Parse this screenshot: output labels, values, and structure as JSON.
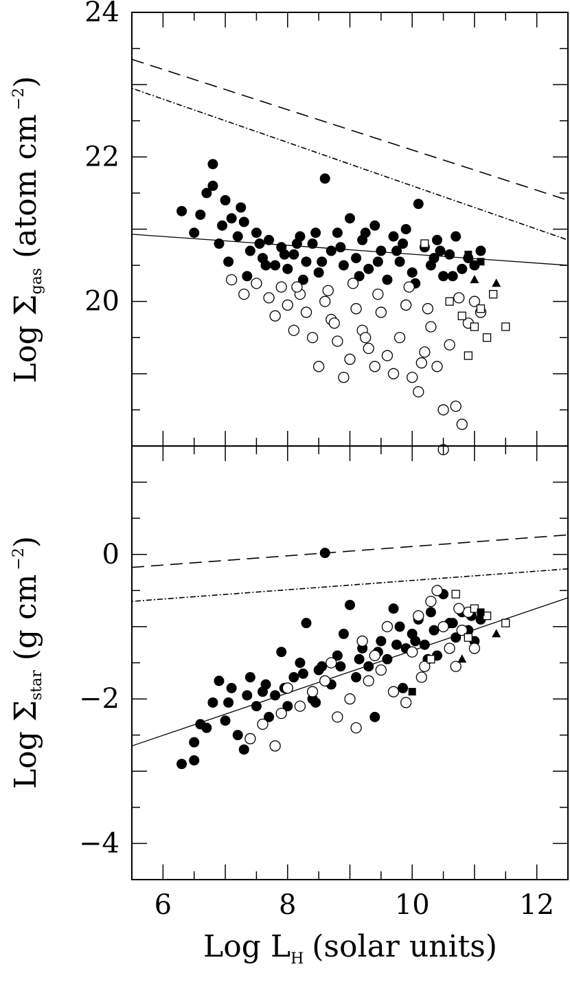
{
  "chart_data": [
    {
      "panel": "top",
      "type": "scatter",
      "ylabel": {
        "main": "Log Σ",
        "sub": "gas",
        "unit": "(atom cm",
        "exp": "−2",
        "close": ")"
      },
      "xlim": [
        5.5,
        12.5
      ],
      "ylim": [
        18.0,
        24.0
      ],
      "yticks": [
        {
          "value": 20,
          "label": "20"
        },
        {
          "value": 22,
          "label": "22"
        },
        {
          "value": 24,
          "label": "24"
        }
      ],
      "grid": false,
      "lines": [
        {
          "style": "solid",
          "x": [
            5.5,
            12.5
          ],
          "y": [
            20.93,
            20.5
          ]
        },
        {
          "style": "dashed",
          "x": [
            5.5,
            12.5
          ],
          "y": [
            23.35,
            21.4
          ]
        },
        {
          "style": "dotdash",
          "x": [
            5.5,
            12.5
          ],
          "y": [
            22.95,
            20.85
          ]
        }
      ],
      "series": [
        {
          "marker": "filled-circle",
          "points": [
            [
              6.3,
              21.25
            ],
            [
              6.5,
              20.95
            ],
            [
              6.6,
              21.2
            ],
            [
              6.7,
              21.5
            ],
            [
              6.8,
              21.9
            ],
            [
              6.8,
              21.6
            ],
            [
              6.9,
              20.8
            ],
            [
              7.0,
              21.4
            ],
            [
              7.1,
              21.15
            ],
            [
              7.2,
              20.9
            ],
            [
              7.3,
              21.1
            ],
            [
              7.4,
              20.7
            ],
            [
              7.5,
              20.95
            ],
            [
              7.6,
              20.6
            ],
            [
              7.7,
              20.85
            ],
            [
              7.8,
              20.5
            ],
            [
              7.9,
              20.75
            ],
            [
              8.0,
              20.45
            ],
            [
              8.1,
              20.65
            ],
            [
              8.2,
              20.9
            ],
            [
              8.3,
              20.55
            ],
            [
              8.4,
              20.8
            ],
            [
              8.5,
              20.4
            ],
            [
              8.6,
              21.7
            ],
            [
              8.7,
              20.7
            ],
            [
              8.8,
              20.95
            ],
            [
              8.9,
              20.5
            ],
            [
              9.0,
              21.15
            ],
            [
              9.1,
              20.6
            ],
            [
              9.2,
              20.85
            ],
            [
              9.3,
              20.45
            ],
            [
              9.4,
              21.05
            ],
            [
              9.5,
              20.7
            ],
            [
              9.6,
              20.3
            ],
            [
              9.7,
              20.9
            ],
            [
              9.8,
              20.55
            ],
            [
              9.9,
              21.0
            ],
            [
              10.0,
              20.4
            ],
            [
              10.1,
              21.35
            ],
            [
              10.2,
              20.75
            ],
            [
              10.3,
              20.5
            ],
            [
              10.4,
              20.85
            ],
            [
              10.5,
              20.35
            ],
            [
              10.6,
              20.65
            ],
            [
              10.7,
              20.9
            ],
            [
              10.8,
              20.45
            ],
            [
              10.9,
              20.6
            ],
            [
              11.0,
              20.5
            ],
            [
              11.1,
              20.7
            ],
            [
              7.05,
              20.55
            ],
            [
              7.35,
              20.35
            ],
            [
              7.65,
              20.5
            ],
            [
              7.95,
              20.65
            ],
            [
              8.25,
              20.3
            ],
            [
              8.55,
              20.55
            ],
            [
              8.85,
              20.75
            ],
            [
              9.15,
              20.35
            ],
            [
              9.45,
              20.55
            ],
            [
              9.75,
              20.7
            ],
            [
              10.05,
              20.25
            ],
            [
              10.35,
              20.6
            ],
            [
              10.65,
              20.35
            ],
            [
              6.95,
              21.05
            ],
            [
              7.25,
              21.3
            ],
            [
              7.55,
              20.8
            ],
            [
              8.15,
              20.8
            ],
            [
              8.45,
              20.95
            ],
            [
              9.25,
              20.95
            ],
            [
              9.85,
              20.8
            ],
            [
              10.45,
              20.7
            ]
          ]
        },
        {
          "marker": "open-circle",
          "points": [
            [
              7.1,
              20.3
            ],
            [
              7.3,
              20.1
            ],
            [
              7.5,
              20.25
            ],
            [
              7.7,
              20.05
            ],
            [
              7.8,
              19.8
            ],
            [
              7.9,
              20.2
            ],
            [
              8.0,
              19.95
            ],
            [
              8.1,
              19.6
            ],
            [
              8.2,
              20.1
            ],
            [
              8.3,
              19.85
            ],
            [
              8.4,
              19.5
            ],
            [
              8.5,
              19.1
            ],
            [
              8.6,
              20.0
            ],
            [
              8.7,
              19.75
            ],
            [
              8.8,
              19.45
            ],
            [
              8.9,
              18.95
            ],
            [
              9.0,
              19.2
            ],
            [
              9.1,
              19.9
            ],
            [
              9.2,
              19.6
            ],
            [
              9.3,
              19.35
            ],
            [
              9.4,
              19.1
            ],
            [
              9.5,
              19.85
            ],
            [
              9.6,
              19.25
            ],
            [
              9.7,
              19.0
            ],
            [
              9.8,
              19.5
            ],
            [
              9.9,
              19.95
            ],
            [
              10.0,
              18.95
            ],
            [
              10.1,
              18.75
            ],
            [
              10.2,
              19.3
            ],
            [
              10.3,
              19.65
            ],
            [
              10.4,
              19.1
            ],
            [
              10.5,
              18.5
            ],
            [
              10.5,
              17.95
            ],
            [
              10.6,
              19.4
            ],
            [
              10.7,
              18.55
            ],
            [
              10.8,
              18.3
            ],
            [
              10.9,
              19.7
            ],
            [
              11.0,
              20.0
            ],
            [
              11.1,
              19.85
            ],
            [
              8.15,
              20.2
            ],
            [
              8.65,
              20.15
            ],
            [
              9.05,
              20.25
            ],
            [
              9.45,
              20.1
            ],
            [
              9.95,
              20.2
            ],
            [
              10.25,
              19.9
            ],
            [
              10.75,
              20.05
            ],
            [
              9.25,
              19.5
            ],
            [
              10.15,
              19.15
            ],
            [
              8.75,
              19.7
            ]
          ]
        },
        {
          "marker": "open-square",
          "points": [
            [
              10.6,
              20.0
            ],
            [
              10.8,
              19.8
            ],
            [
              11.0,
              19.65
            ],
            [
              11.2,
              19.5
            ],
            [
              11.3,
              20.1
            ],
            [
              11.5,
              19.65
            ],
            [
              10.9,
              19.25
            ],
            [
              10.2,
              20.8
            ],
            [
              11.1,
              19.9
            ]
          ]
        },
        {
          "marker": "filled-square",
          "points": [
            [
              11.1,
              20.55
            ],
            [
              10.9,
              20.65
            ]
          ]
        },
        {
          "marker": "filled-triangle",
          "points": [
            [
              11.35,
              20.25
            ],
            [
              11.0,
              20.3
            ]
          ]
        }
      ]
    },
    {
      "panel": "bottom",
      "type": "scatter",
      "xlabel": {
        "main": "Log L",
        "sub": "H",
        "rest": "(solar units)"
      },
      "ylabel": {
        "main": "Log Σ",
        "sub": "star",
        "unit": "(g cm",
        "exp": "−2",
        "close": ")"
      },
      "xlim": [
        5.5,
        12.5
      ],
      "ylim": [
        -4.5,
        1.5
      ],
      "xticks": [
        {
          "value": 6,
          "label": "6"
        },
        {
          "value": 8,
          "label": "8"
        },
        {
          "value": 10,
          "label": "10"
        },
        {
          "value": 12,
          "label": "12"
        }
      ],
      "yticks": [
        {
          "value": -4,
          "label": "−4"
        },
        {
          "value": -2,
          "label": "−2"
        },
        {
          "value": 0,
          "label": "0"
        }
      ],
      "grid": false,
      "lines": [
        {
          "style": "solid",
          "x": [
            5.5,
            12.5
          ],
          "y": [
            -2.65,
            -0.6
          ]
        },
        {
          "style": "dashed",
          "x": [
            5.5,
            12.5
          ],
          "y": [
            -0.18,
            0.27
          ]
        },
        {
          "style": "dotdash",
          "x": [
            5.5,
            12.5
          ],
          "y": [
            -0.65,
            -0.2
          ]
        }
      ],
      "series": [
        {
          "marker": "filled-circle",
          "points": [
            [
              6.3,
              -2.9
            ],
            [
              6.5,
              -2.85
            ],
            [
              6.5,
              -2.6
            ],
            [
              6.6,
              -2.35
            ],
            [
              6.7,
              -2.4
            ],
            [
              6.8,
              -2.05
            ],
            [
              6.9,
              -1.75
            ],
            [
              7.0,
              -2.3
            ],
            [
              7.1,
              -1.85
            ],
            [
              7.2,
              -2.5
            ],
            [
              7.3,
              -2.7
            ],
            [
              7.4,
              -1.7
            ],
            [
              7.5,
              -2.1
            ],
            [
              7.6,
              -1.9
            ],
            [
              7.7,
              -2.25
            ],
            [
              7.8,
              -1.95
            ],
            [
              7.9,
              -1.35
            ],
            [
              8.0,
              -2.1
            ],
            [
              8.1,
              -1.7
            ],
            [
              8.2,
              -1.5
            ],
            [
              8.3,
              -0.95
            ],
            [
              8.4,
              -2.0
            ],
            [
              8.5,
              -1.6
            ],
            [
              8.6,
              0.02
            ],
            [
              8.7,
              -1.8
            ],
            [
              8.8,
              -1.4
            ],
            [
              8.9,
              -1.1
            ],
            [
              9.0,
              -0.7
            ],
            [
              9.1,
              -1.7
            ],
            [
              9.2,
              -1.3
            ],
            [
              9.3,
              -1.55
            ],
            [
              9.4,
              -2.25
            ],
            [
              9.5,
              -1.2
            ],
            [
              9.6,
              -1.45
            ],
            [
              9.7,
              -0.75
            ],
            [
              9.8,
              -1.0
            ],
            [
              9.9,
              -1.3
            ],
            [
              10.0,
              -1.1
            ],
            [
              10.1,
              -0.9
            ],
            [
              10.2,
              -1.25
            ],
            [
              10.3,
              -0.8
            ],
            [
              10.4,
              -1.4
            ],
            [
              10.5,
              -0.55
            ],
            [
              10.6,
              -0.95
            ],
            [
              10.7,
              -1.15
            ],
            [
              10.8,
              -0.8
            ],
            [
              10.9,
              -1.05
            ],
            [
              11.0,
              -1.2
            ],
            [
              11.1,
              -0.9
            ],
            [
              7.05,
              -2.05
            ],
            [
              7.35,
              -1.95
            ],
            [
              7.65,
              -1.8
            ],
            [
              7.95,
              -1.85
            ],
            [
              8.25,
              -1.65
            ],
            [
              8.55,
              -1.55
            ],
            [
              8.85,
              -1.55
            ],
            [
              9.15,
              -1.45
            ],
            [
              9.45,
              -1.35
            ],
            [
              9.75,
              -1.25
            ],
            [
              10.05,
              -1.2
            ],
            [
              10.35,
              -1.05
            ],
            [
              10.65,
              -0.95
            ],
            [
              10.95,
              -0.85
            ],
            [
              8.45,
              -2.05
            ],
            [
              9.85,
              -1.85
            ],
            [
              10.25,
              -1.45
            ]
          ]
        },
        {
          "marker": "open-circle",
          "points": [
            [
              7.4,
              -2.55
            ],
            [
              7.6,
              -2.35
            ],
            [
              7.8,
              -2.65
            ],
            [
              7.9,
              -2.2
            ],
            [
              8.0,
              -1.85
            ],
            [
              8.2,
              -2.1
            ],
            [
              8.4,
              -1.9
            ],
            [
              8.6,
              -1.75
            ],
            [
              8.8,
              -2.25
            ],
            [
              9.0,
              -2.0
            ],
            [
              9.1,
              -2.4
            ],
            [
              9.3,
              -1.75
            ],
            [
              9.5,
              -1.6
            ],
            [
              9.7,
              -1.9
            ],
            [
              9.9,
              -2.05
            ],
            [
              10.0,
              -1.35
            ],
            [
              10.2,
              -1.55
            ],
            [
              10.3,
              -0.65
            ],
            [
              10.4,
              -0.5
            ],
            [
              10.5,
              -1.0
            ],
            [
              10.6,
              -1.3
            ],
            [
              10.7,
              -1.55
            ],
            [
              10.8,
              -1.05
            ],
            [
              10.9,
              -0.8
            ],
            [
              11.0,
              -1.3
            ],
            [
              9.2,
              -1.2
            ],
            [
              9.6,
              -1.0
            ],
            [
              10.1,
              -0.85
            ],
            [
              8.7,
              -1.5
            ],
            [
              9.4,
              -1.4
            ],
            [
              10.75,
              -0.75
            ],
            [
              10.15,
              -1.7
            ]
          ]
        },
        {
          "marker": "open-square",
          "points": [
            [
              10.7,
              -0.55
            ],
            [
              11.0,
              -0.75
            ],
            [
              11.2,
              -0.85
            ],
            [
              11.5,
              -0.95
            ],
            [
              10.3,
              -1.45
            ],
            [
              10.9,
              -1.15
            ]
          ]
        },
        {
          "marker": "filled-square",
          "points": [
            [
              11.1,
              -0.8
            ],
            [
              10.0,
              -1.9
            ]
          ]
        },
        {
          "marker": "filled-triangle",
          "points": [
            [
              11.35,
              -1.1
            ],
            [
              10.8,
              -1.45
            ]
          ]
        }
      ]
    }
  ]
}
